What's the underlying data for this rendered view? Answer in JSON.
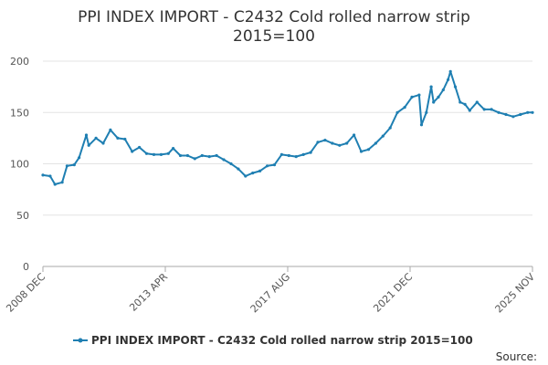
{
  "chart_data": {
    "type": "line",
    "title_lines": [
      "PPI INDEX IMPORT - C2432 Cold rolled narrow strip",
      "2015=100"
    ],
    "x_tick_labels": [
      "2008 DEC",
      "2013 APR",
      "2017 AUG",
      "2021 DEC",
      "2025 NOV"
    ],
    "x_range": [
      "2008-12",
      "2025-11"
    ],
    "ylim": [
      0,
      200
    ],
    "y_ticks": [
      0,
      50,
      100,
      150,
      200
    ],
    "grid": "horizontal",
    "legend_position": "bottom",
    "source_label": "Source:",
    "series": [
      {
        "name": "PPI INDEX IMPORT - C2432 Cold rolled narrow strip 2015=100",
        "color": "#1f7fb2",
        "x": [
          "2008-12",
          "2009-03",
          "2009-05",
          "2009-08",
          "2009-10",
          "2010-01",
          "2010-03",
          "2010-06",
          "2010-07",
          "2010-10",
          "2011-01",
          "2011-04",
          "2011-07",
          "2011-10",
          "2012-01",
          "2012-04",
          "2012-07",
          "2012-10",
          "2013-01",
          "2013-04",
          "2013-06",
          "2013-09",
          "2013-12",
          "2014-03",
          "2014-06",
          "2014-09",
          "2014-12",
          "2015-03",
          "2015-06",
          "2015-09",
          "2015-12",
          "2016-03",
          "2016-06",
          "2016-09",
          "2016-12",
          "2017-03",
          "2017-06",
          "2017-09",
          "2017-12",
          "2018-03",
          "2018-06",
          "2018-09",
          "2018-12",
          "2019-03",
          "2019-06",
          "2019-09",
          "2019-12",
          "2020-03",
          "2020-06",
          "2020-09",
          "2020-12",
          "2021-03",
          "2021-06",
          "2021-09",
          "2021-12",
          "2022-01",
          "2022-03",
          "2022-05",
          "2022-06",
          "2022-08",
          "2022-10",
          "2022-12",
          "2023-01",
          "2023-03",
          "2023-05",
          "2023-07",
          "2023-09",
          "2023-12",
          "2024-03",
          "2024-06",
          "2024-09",
          "2024-12",
          "2025-03",
          "2025-06",
          "2025-09",
          "2025-11"
        ],
        "values": [
          89,
          88,
          80,
          82,
          98,
          99,
          106,
          128,
          118,
          125,
          120,
          133,
          125,
          124,
          112,
          116,
          110,
          109,
          109,
          110,
          115,
          108,
          108,
          105,
          108,
          107,
          108,
          104,
          100,
          95,
          88,
          91,
          93,
          98,
          99,
          109,
          108,
          107,
          109,
          111,
          121,
          123,
          120,
          118,
          120,
          128,
          112,
          114,
          120,
          127,
          135,
          150,
          155,
          165,
          167,
          138,
          150,
          175,
          160,
          165,
          172,
          182,
          190,
          175,
          160,
          158,
          152,
          160,
          153,
          153,
          150,
          148,
          146,
          148,
          150,
          150
        ]
      }
    ]
  }
}
